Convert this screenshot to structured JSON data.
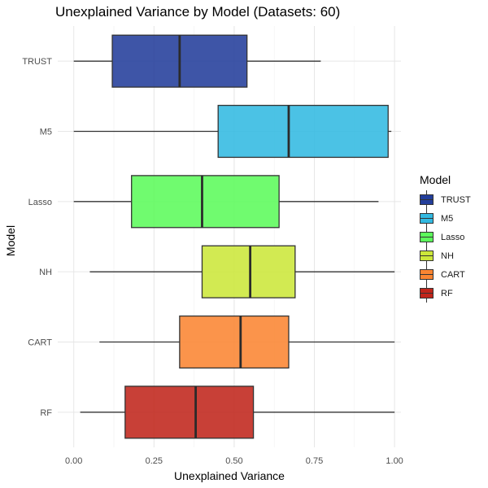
{
  "chart_data": {
    "type": "boxplot",
    "orientation": "horizontal",
    "title": "Unexplained Variance by Model (Datasets: 60)",
    "xlabel": "Unexplained Variance",
    "ylabel": "Model",
    "xlim": [
      -0.05,
      1.02
    ],
    "x_ticks": [
      0,
      0.25,
      0.5,
      0.75,
      1
    ],
    "x_tick_labels": [
      "0.00",
      "0.25",
      "0.50",
      "0.75",
      "1.00"
    ],
    "grid": true,
    "legend": {
      "title": "Model",
      "position": "right"
    },
    "categories": [
      "TRUST",
      "M5",
      "Lasso",
      "NH",
      "CART",
      "RF"
    ],
    "series": [
      {
        "name": "TRUST",
        "color": "#233E9B",
        "min": 0.0,
        "q1": 0.12,
        "median": 0.33,
        "q3": 0.54,
        "max": 0.77
      },
      {
        "name": "M5",
        "color": "#32B9E1",
        "min": 0.0,
        "q1": 0.45,
        "median": 0.67,
        "q3": 0.98,
        "max": 0.99
      },
      {
        "name": "Lasso",
        "color": "#5CFB5B",
        "min": 0.0,
        "q1": 0.18,
        "median": 0.4,
        "q3": 0.64,
        "max": 0.95
      },
      {
        "name": "NH",
        "color": "#CCE73A",
        "min": 0.05,
        "q1": 0.4,
        "median": 0.55,
        "q3": 0.69,
        "max": 1.0
      },
      {
        "name": "CART",
        "color": "#FA8532",
        "min": 0.08,
        "q1": 0.33,
        "median": 0.52,
        "q3": 0.67,
        "max": 1.0
      },
      {
        "name": "RF",
        "color": "#C0251B",
        "min": 0.02,
        "q1": 0.16,
        "median": 0.38,
        "q3": 0.56,
        "max": 1.0
      }
    ]
  }
}
